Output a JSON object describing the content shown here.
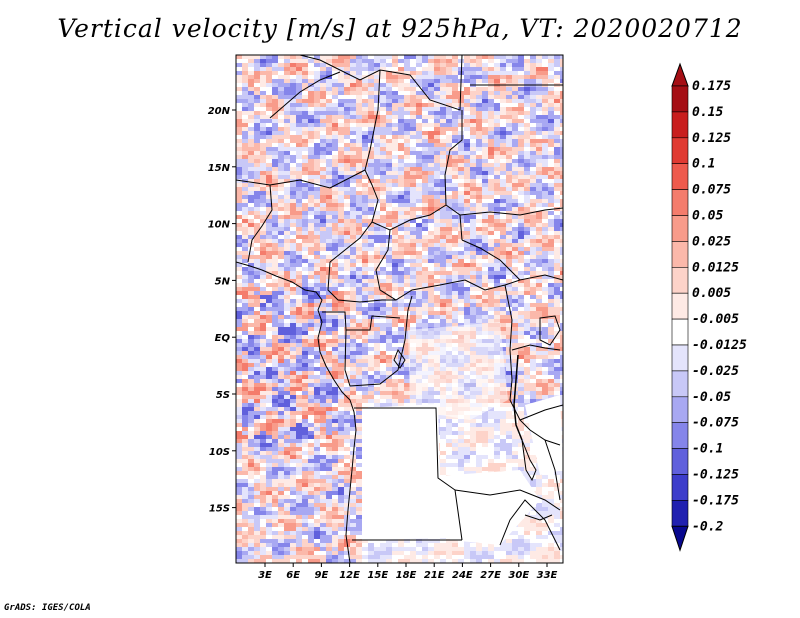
{
  "title": "Vertical velocity [m/s] at 925hPa, VT: 2020020712",
  "credit": "GrADS: IGES/COLA",
  "map": {
    "lon_ticks": [
      "3E",
      "6E",
      "9E",
      "12E",
      "15E",
      "18E",
      "21E",
      "24E",
      "27E",
      "30E",
      "33E"
    ],
    "lat_ticks": [
      "20N",
      "15N",
      "10N",
      "5N",
      "EQ",
      "5S",
      "10S",
      "15S"
    ]
  },
  "colorbar": {
    "levels": [
      "0.175",
      "0.15",
      "0.125",
      "0.1",
      "0.075",
      "0.05",
      "0.025",
      "0.0125",
      "0.005",
      "-0.005",
      "-0.0125",
      "-0.025",
      "-0.05",
      "-0.075",
      "-0.1",
      "-0.125",
      "-0.175",
      "-0.2"
    ],
    "colors": [
      "#a50f15",
      "#c81e1e",
      "#e03a32",
      "#ee5a4d",
      "#f47c6c",
      "#f89b8a",
      "#fbb8aa",
      "#fdd3c9",
      "#feeae5",
      "#ffffff",
      "#e4e4fc",
      "#c8c8f7",
      "#a8a8f2",
      "#8585ea",
      "#6060dc",
      "#3d3dcb",
      "#2020b0",
      "#08088f"
    ]
  }
}
